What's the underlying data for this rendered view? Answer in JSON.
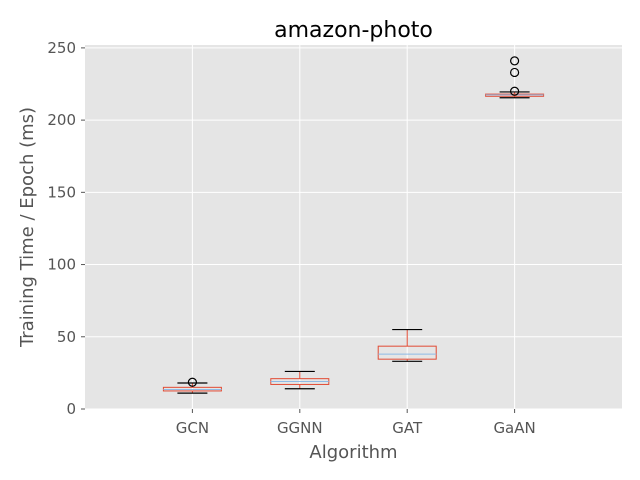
{
  "chart_data": {
    "type": "box",
    "title": "amazon-photo",
    "xlabel": "Algorithm",
    "ylabel": "Training Time / Epoch (ms)",
    "ylim": [
      0,
      252
    ],
    "yticks": [
      0,
      50,
      100,
      150,
      200,
      250
    ],
    "grid": true,
    "colors": {
      "background": "#E5E5E5",
      "grid": "#FFFFFF",
      "box": "#E24A33",
      "median": "#8EBAE5",
      "whisker": "#E24A33",
      "cap": "#000000",
      "flier": "#000000"
    },
    "categories": [
      "GCN",
      "GGNN",
      "GAT",
      "GaAN"
    ],
    "boxes": [
      {
        "label": "GCN",
        "whislo": 11,
        "q1": 12.5,
        "med": 13.5,
        "q3": 15,
        "whishi": 18,
        "fliers": [
          18.5
        ]
      },
      {
        "label": "GGNN",
        "whislo": 14,
        "q1": 17,
        "med": 19,
        "q3": 21,
        "whishi": 26,
        "fliers": []
      },
      {
        "label": "GAT",
        "whislo": 33,
        "q1": 34.5,
        "med": 38,
        "q3": 43.5,
        "whishi": 55,
        "fliers": []
      },
      {
        "label": "GaAN",
        "whislo": 215.5,
        "q1": 216.5,
        "med": 217.5,
        "q3": 218,
        "whishi": 219.5,
        "fliers": [
          220,
          233,
          241
        ]
      }
    ]
  }
}
